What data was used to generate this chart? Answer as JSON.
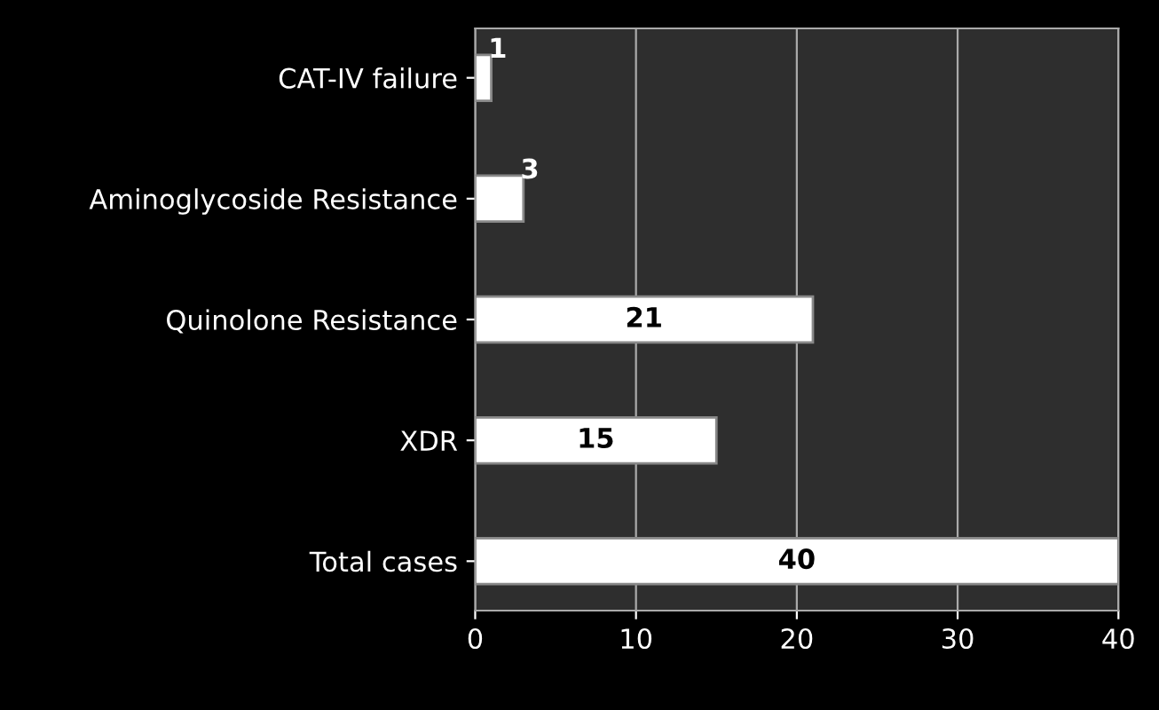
{
  "chart_data": {
    "type": "bar",
    "orientation": "horizontal",
    "categories": [
      "CAT-IV failure",
      "Aminoglycoside Resistance",
      "Quinolone Resistance",
      "XDR",
      "Total cases"
    ],
    "values": [
      1,
      3,
      21,
      15,
      40
    ],
    "color": "#ffffff",
    "xlim": [
      0,
      40
    ],
    "xticks": [
      0,
      10,
      20,
      30,
      40
    ],
    "grid": "x",
    "data_labels": true
  }
}
